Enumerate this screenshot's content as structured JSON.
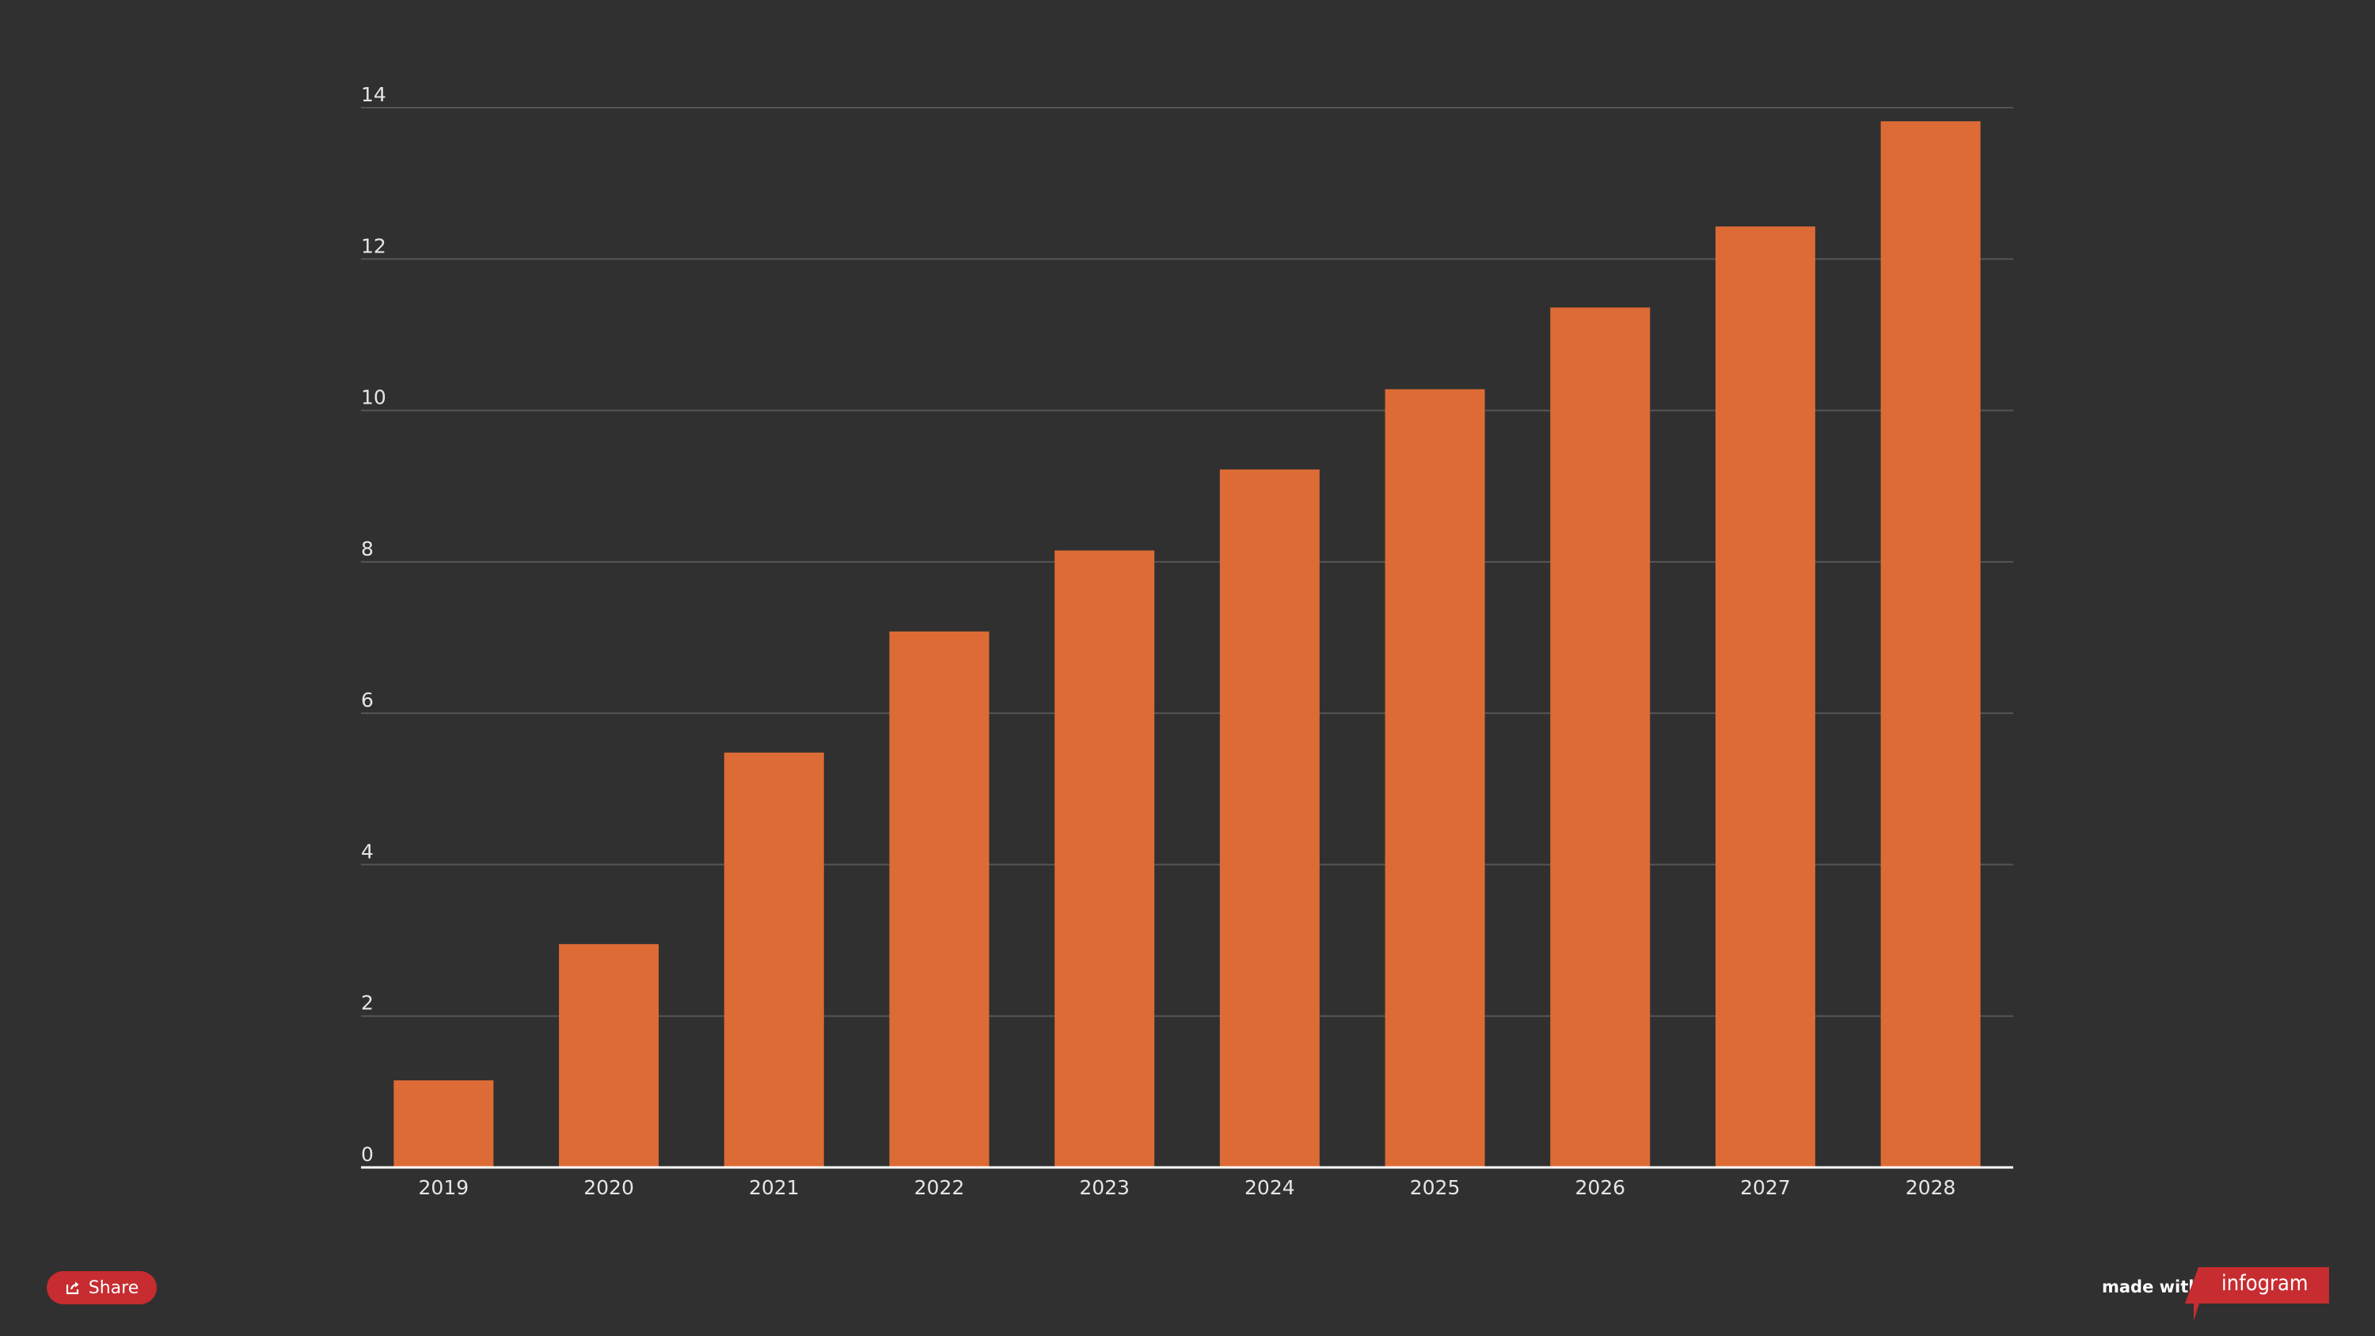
{
  "chart_data": {
    "type": "bar",
    "categories": [
      "2019",
      "2020",
      "2021",
      "2022",
      "2023",
      "2024",
      "2025",
      "2026",
      "2027",
      "2028"
    ],
    "values": [
      1.15,
      2.95,
      5.48,
      7.08,
      8.15,
      9.22,
      10.28,
      11.36,
      12.43,
      13.82
    ],
    "title": "",
    "xlabel": "",
    "ylabel": "",
    "ylim": [
      0,
      14
    ],
    "yticks": [
      "0",
      "2",
      "4",
      "6",
      "8",
      "10",
      "12",
      "14"
    ],
    "grid": true,
    "legend": "none",
    "bar_color": "#dd6b35",
    "background_color": "#303030",
    "grid_color": "#555555",
    "axis_color": "#ffffff",
    "label_color": "#e6e6e6"
  },
  "footer": {
    "share_label": "Share",
    "share_color": "#c72c30",
    "share_icon": "share-icon",
    "made_with": "made with",
    "brand": "infogram",
    "brand_color": "#c72c30"
  }
}
